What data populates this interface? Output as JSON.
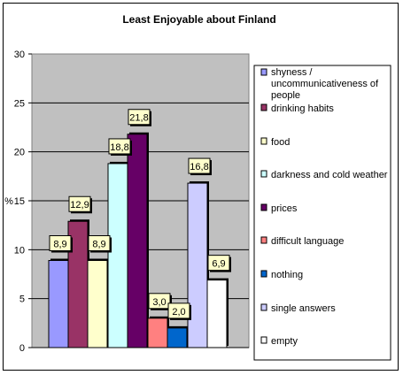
{
  "chart_data": {
    "type": "bar",
    "title": "Least Enjoyable about Finland",
    "ylabel": "%",
    "xlabel": "",
    "ylim": [
      0,
      30
    ],
    "yticks": [
      0,
      5,
      10,
      15,
      20,
      25,
      30
    ],
    "grid": true,
    "legend_position": "right",
    "categories": [
      "shyness / uncommunicativeness of people",
      "drinking habits",
      "food",
      "darkness and cold weather",
      "prices",
      "difficult language",
      "nothing",
      "single answers",
      "empty"
    ],
    "values": [
      8.9,
      12.9,
      8.9,
      18.8,
      21.8,
      3.0,
      2.0,
      16.8,
      6.9
    ],
    "data_labels": [
      "8,9",
      "12,9",
      "8,9",
      "18,8",
      "21,8",
      "3,0",
      "2,0",
      "16,8",
      "6,9"
    ],
    "colors": [
      "#9999ff",
      "#993366",
      "#ffffcc",
      "#ccffff",
      "#660066",
      "#ff8080",
      "#0066cc",
      "#ccccff",
      "#ffffff"
    ],
    "groups": [
      [
        0,
        1,
        2
      ],
      [
        3,
        4
      ],
      [
        5,
        6
      ],
      [
        7,
        8
      ]
    ]
  }
}
